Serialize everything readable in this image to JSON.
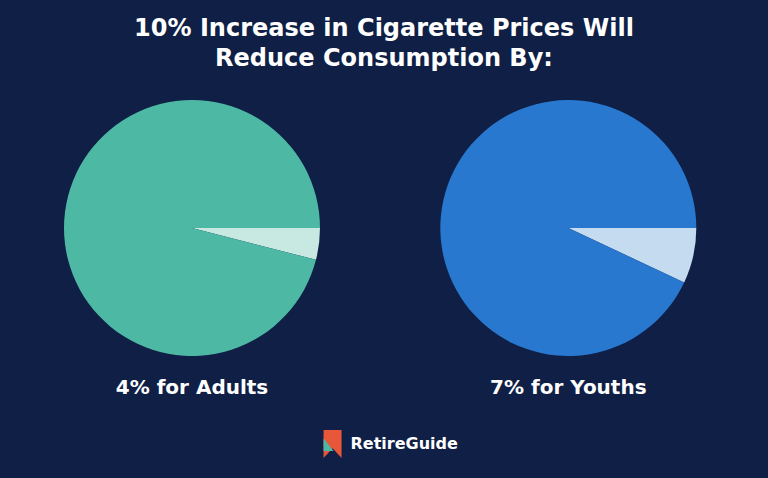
{
  "chart_data": [
    {
      "type": "pie",
      "title": "10% Increase in Cigarette Prices Will\nReduce Consumption By:",
      "subtitle": "4% for Adults",
      "values": [
        4,
        96
      ],
      "colors": [
        "#c8e8e2",
        "#4db8a4"
      ],
      "annotations": [
        {
          "text": "RetireGuide"
        }
      ]
    },
    {
      "type": "pie",
      "subtitle": "7% for Youths",
      "values": [
        7,
        93
      ],
      "colors": [
        "#c5dcf0",
        "#2878d0"
      ]
    }
  ]
}
